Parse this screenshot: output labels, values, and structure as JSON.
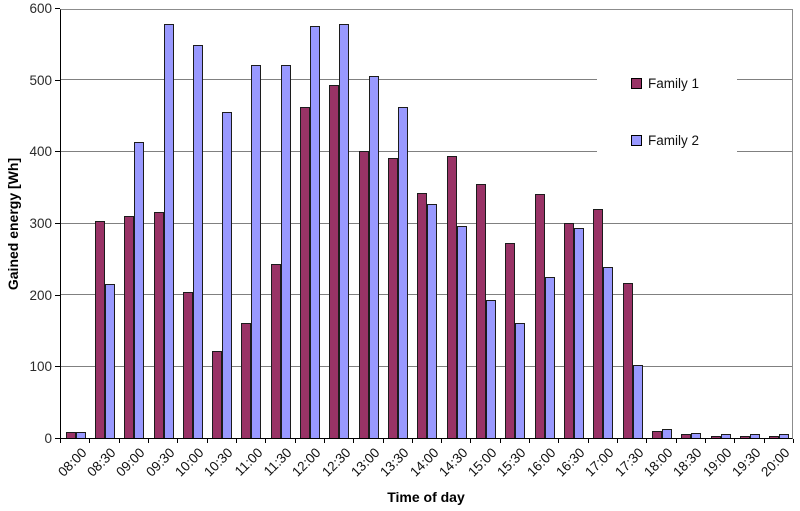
{
  "chart_data": {
    "type": "bar",
    "title": "",
    "xlabel": "Time of day",
    "ylabel": "Gained energy [Wh]",
    "ylim": [
      0,
      600
    ],
    "yticks": [
      0,
      100,
      200,
      300,
      400,
      500,
      600
    ],
    "grid": true,
    "legend_position": "inside-right",
    "categories": [
      "08:00",
      "08:30",
      "09:00",
      "09:30",
      "10:00",
      "10:30",
      "11:00",
      "11:30",
      "12:00",
      "12:30",
      "13:00",
      "13:30",
      "14:00",
      "14:30",
      "15:00",
      "15:30",
      "16:00",
      "16:30",
      "17:00",
      "17:30",
      "18:00",
      "18:30",
      "19:00",
      "19:30",
      "20:00"
    ],
    "series": [
      {
        "name": "Family 1",
        "color": "#993366",
        "values": [
          8,
          303,
          310,
          315,
          204,
          121,
          160,
          243,
          462,
          493,
          400,
          390,
          342,
          394,
          354,
          272,
          341,
          300,
          319,
          216,
          10,
          5,
          3,
          3,
          3
        ]
      },
      {
        "name": "Family 2",
        "color": "#9999FF",
        "values": [
          8,
          215,
          413,
          577,
          548,
          455,
          521,
          521,
          575,
          578,
          505,
          462,
          326,
          296,
          192,
          161,
          225,
          293,
          239,
          102,
          13,
          7,
          5,
          5,
          5
        ]
      }
    ]
  },
  "colors": {
    "background": "#FFFFFF",
    "gridline": "#808080",
    "axis": "#000000",
    "plot_border": "#8C8C8C",
    "bar_outline": "#1C1C1C",
    "series1_fill": "#993366",
    "series2_fill": "#9999FF"
  }
}
